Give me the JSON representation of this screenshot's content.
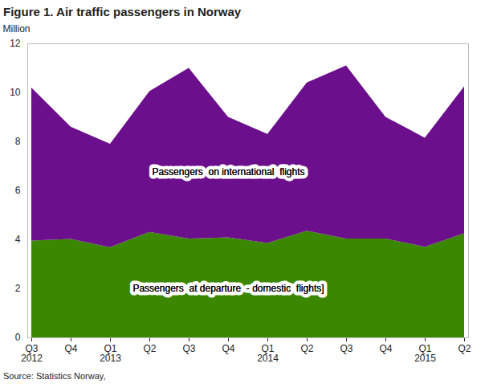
{
  "chart_data": {
    "type": "area",
    "title": "Figure 1. Air traffic passengers in Norway",
    "y_label": "Million",
    "source": "Source: Statistics Norway,",
    "categories": [
      "Q3\n2012",
      "Q4",
      "Q1\n2013",
      "Q2",
      "Q3",
      "Q4",
      "Q1\n2014",
      "Q2",
      "Q3",
      "Q4",
      "Q1\n2015",
      "Q2"
    ],
    "stacked": true,
    "series": [
      {
        "name": "Passengers  at departure  - domestic  flights]",
        "color": "#3b8800",
        "values": [
          3.95,
          4.02,
          3.68,
          4.3,
          4.03,
          4.08,
          3.85,
          4.35,
          4.03,
          4.03,
          3.7,
          4.25
        ]
      },
      {
        "name": "Passengers  on international  flights",
        "color": "#6b0f8c",
        "values": [
          6.25,
          4.58,
          4.22,
          5.75,
          6.97,
          4.92,
          4.45,
          6.05,
          7.07,
          4.97,
          4.45,
          6.0
        ]
      }
    ],
    "ylim": [
      0,
      12
    ],
    "yticks": [
      0,
      2,
      4,
      6,
      8,
      10,
      12
    ],
    "grid": false
  }
}
